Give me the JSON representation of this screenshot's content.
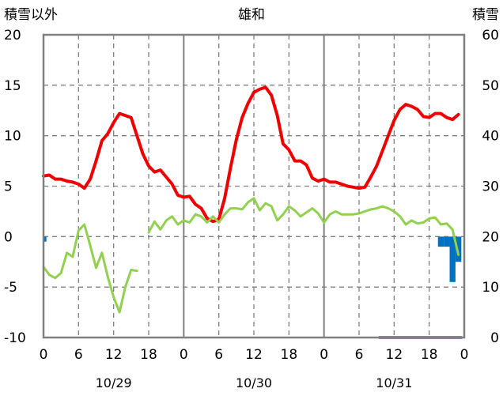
{
  "chart_data": {
    "type": "line",
    "title": "雄和",
    "ylabel_left": "積雪以外",
    "ylabel_right": "積雪",
    "y_left_range": [
      -10,
      20
    ],
    "y_left_ticks": [
      "20",
      "15",
      "10",
      "5",
      "0",
      "-5",
      "-10"
    ],
    "y_right_range": [
      0,
      60
    ],
    "y_right_ticks": [
      "60",
      "50",
      "40",
      "30",
      "20",
      "10",
      "0"
    ],
    "x_range_hours": [
      0,
      72
    ],
    "x_ticks": [
      "0",
      "6",
      "12",
      "18",
      "0",
      "6",
      "12",
      "18",
      "0",
      "6",
      "12",
      "18",
      "0"
    ],
    "date_labels": [
      "10/29",
      "10/30",
      "10/31"
    ],
    "grid": true,
    "colors": {
      "temperature": "#ee0000",
      "dewpoint": "#92d050",
      "precipitation": "#0070c0",
      "snow_depth": "#7030a0",
      "grid": "#808080",
      "frame": "#808080"
    },
    "series": [
      {
        "key": "temperature",
        "axis": "left",
        "values": [
          [
            0,
            6.0
          ],
          [
            1,
            6.1
          ],
          [
            2,
            5.7
          ],
          [
            3,
            5.7
          ],
          [
            4,
            5.5
          ],
          [
            5,
            5.4
          ],
          [
            6,
            5.2
          ],
          [
            7,
            4.8
          ],
          [
            8,
            5.7
          ],
          [
            9,
            7.5
          ],
          [
            10,
            9.5
          ],
          [
            11,
            10.2
          ],
          [
            12,
            11.3
          ],
          [
            13,
            12.2
          ],
          [
            14,
            12.0
          ],
          [
            15,
            11.8
          ],
          [
            16,
            10.0
          ],
          [
            17,
            8.2
          ],
          [
            18,
            7.0
          ],
          [
            19,
            6.4
          ],
          [
            20,
            6.6
          ],
          [
            21,
            5.9
          ],
          [
            22,
            5.2
          ],
          [
            23,
            4.1
          ],
          [
            24,
            3.9
          ],
          [
            25,
            4.0
          ],
          [
            26,
            3.2
          ],
          [
            27,
            2.8
          ],
          [
            28,
            1.8
          ],
          [
            29,
            1.5
          ],
          [
            30,
            1.7
          ],
          [
            31,
            3.8
          ],
          [
            32,
            6.8
          ],
          [
            33,
            9.6
          ],
          [
            34,
            11.8
          ],
          [
            35,
            13.2
          ],
          [
            36,
            14.3
          ],
          [
            37,
            14.6
          ],
          [
            38,
            14.8
          ],
          [
            39,
            14.0
          ],
          [
            40,
            12.0
          ],
          [
            41,
            9.2
          ],
          [
            42,
            8.6
          ],
          [
            43,
            7.5
          ],
          [
            44,
            7.5
          ],
          [
            45,
            7.1
          ],
          [
            46,
            5.8
          ],
          [
            47,
            5.5
          ],
          [
            48,
            5.7
          ],
          [
            49,
            5.4
          ],
          [
            50,
            5.4
          ],
          [
            51,
            5.2
          ],
          [
            52,
            5.0
          ],
          [
            53,
            4.9
          ],
          [
            54,
            4.8
          ],
          [
            55,
            4.9
          ],
          [
            56,
            5.9
          ],
          [
            57,
            7.0
          ],
          [
            58,
            8.5
          ],
          [
            59,
            10.0
          ],
          [
            60,
            11.5
          ],
          [
            61,
            12.6
          ],
          [
            62,
            13.1
          ],
          [
            63,
            12.9
          ],
          [
            64,
            12.6
          ],
          [
            65,
            11.9
          ],
          [
            66,
            11.8
          ],
          [
            67,
            12.2
          ],
          [
            68,
            12.2
          ],
          [
            69,
            11.8
          ],
          [
            70,
            11.6
          ],
          [
            71,
            12.1
          ]
        ]
      },
      {
        "key": "dewpoint",
        "axis": "left",
        "values": [
          [
            0,
            -3.0
          ],
          [
            1,
            -3.8
          ],
          [
            2,
            -4.1
          ],
          [
            3,
            -3.6
          ],
          [
            4,
            -1.6
          ],
          [
            5,
            -2.0
          ],
          [
            6,
            0.6
          ],
          [
            7,
            1.2
          ],
          [
            8,
            -0.9
          ],
          [
            9,
            -3.1
          ],
          [
            10,
            -1.6
          ],
          [
            11,
            -4.0
          ],
          [
            12,
            -6.0
          ],
          [
            13,
            -7.5
          ],
          [
            14,
            -5.0
          ],
          [
            15,
            -3.3
          ],
          [
            16,
            -3.4
          ],
          null,
          [
            18,
            0.4
          ],
          [
            19,
            1.5
          ],
          [
            20,
            0.7
          ],
          [
            21,
            1.6
          ],
          [
            22,
            2.0
          ],
          [
            23,
            1.2
          ],
          [
            24,
            1.6
          ],
          [
            25,
            1.4
          ],
          [
            26,
            2.2
          ],
          [
            27,
            2.0
          ],
          [
            28,
            1.4
          ],
          [
            29,
            2.0
          ],
          [
            30,
            1.4
          ],
          [
            31,
            2.2
          ],
          [
            32,
            2.8
          ],
          [
            33,
            2.8
          ],
          [
            34,
            2.7
          ],
          [
            35,
            3.4
          ],
          [
            36,
            3.8
          ],
          [
            37,
            2.6
          ],
          [
            38,
            3.3
          ],
          [
            39,
            3.0
          ],
          [
            40,
            1.6
          ],
          [
            41,
            2.2
          ],
          [
            42,
            3.0
          ],
          [
            43,
            2.6
          ],
          [
            44,
            2.0
          ],
          [
            45,
            2.4
          ],
          [
            46,
            2.8
          ],
          [
            47,
            2.3
          ],
          [
            48,
            1.4
          ],
          [
            49,
            2.2
          ],
          [
            50,
            2.5
          ],
          [
            51,
            2.2
          ],
          [
            52,
            2.2
          ],
          [
            53,
            2.2
          ],
          [
            54,
            2.3
          ],
          [
            55,
            2.5
          ],
          [
            56,
            2.7
          ],
          [
            57,
            2.8
          ],
          [
            58,
            3.0
          ],
          [
            59,
            2.8
          ],
          [
            60,
            2.5
          ],
          [
            61,
            2.0
          ],
          [
            62,
            1.2
          ],
          [
            63,
            1.6
          ],
          [
            64,
            1.3
          ],
          [
            65,
            1.4
          ],
          [
            66,
            1.8
          ],
          [
            67,
            1.9
          ],
          [
            68,
            1.2
          ],
          [
            69,
            1.3
          ],
          [
            70,
            0.7
          ],
          [
            71,
            -1.8
          ]
        ]
      },
      {
        "key": "precipitation",
        "axis": "left",
        "type": "bar",
        "values": [
          [
            0,
            -0.5
          ],
          [
            68,
            -1.0
          ],
          [
            69,
            -1.0
          ],
          [
            70,
            -4.5
          ],
          [
            71,
            -2.5
          ]
        ]
      },
      {
        "key": "snow_depth",
        "axis": "right",
        "values": [
          [
            57.5,
            0
          ],
          [
            71.5,
            0
          ]
        ]
      }
    ]
  }
}
